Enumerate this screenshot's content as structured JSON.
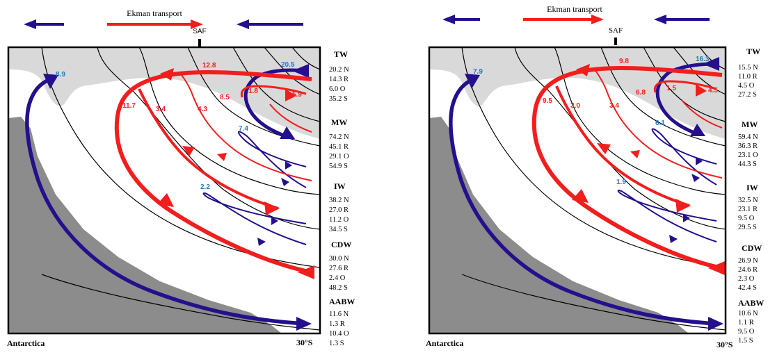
{
  "colors": {
    "ekman_red": "#f21e1e",
    "circulation_red": "#f21e1e",
    "circulation_blue": "#250f8c",
    "transport_blue_label": "#2e78b8",
    "continent_gray": "#8c8c8c",
    "surface_gray": "#d9d9d9",
    "isopycnal_black": "#000000"
  },
  "panels": [
    {
      "id": "left",
      "ekman_label": "Ekman transport",
      "front_label": "SAF",
      "bottom_left_label": "Antarctica",
      "bottom_right_label": "30°S",
      "flow_labels": {
        "blue": [
          "8.9",
          "20.5",
          "7.4",
          "2.2"
        ],
        "red": [
          "12.8",
          "11.7",
          "3.4",
          "4.3",
          "8.5",
          "1.8",
          "5.9"
        ]
      },
      "water_masses": [
        {
          "name": "TW",
          "values": [
            "20.2 N",
            "14.3 R",
            "6.0 O",
            "35.2 S"
          ]
        },
        {
          "name": "MW",
          "values": [
            "74.2 N",
            "45.1 R",
            "29.1 O",
            "54.9 S"
          ]
        },
        {
          "name": "IW",
          "values": [
            "38.2 N",
            "27.0 R",
            "11.2 O",
            "34.5 S"
          ]
        },
        {
          "name": "CDW",
          "values": [
            "30.0 N",
            "27.6 R",
            "2.4 O",
            "48.2 S"
          ]
        },
        {
          "name": "AABW",
          "values": [
            "11.6 N",
            "1.3 R",
            "10.4 O",
            "1.3 S"
          ]
        }
      ]
    },
    {
      "id": "right",
      "ekman_label": "Ekman transport",
      "front_label": "SAF",
      "bottom_left_label": "Antarctica",
      "bottom_right_label": "30°S",
      "flow_labels": {
        "blue": [
          "7.9",
          "16.3",
          "6.1",
          "1.9"
        ],
        "red": [
          "9.8",
          "9.5",
          "3.0",
          "3.4",
          "6.8",
          "1.5",
          "4.5"
        ]
      },
      "water_masses": [
        {
          "name": "TW",
          "values": [
            "15.5 N",
            "11.0 R",
            "4.5 O",
            "27.2 S"
          ]
        },
        {
          "name": "MW",
          "values": [
            "59.4 N",
            "36.3 R",
            "23.1 O",
            "44.3 S"
          ]
        },
        {
          "name": "IW",
          "values": [
            "32.5 N",
            "23.1 R",
            "9.5 O",
            "29.5 S"
          ]
        },
        {
          "name": "CDW",
          "values": [
            "26.9 N",
            "24.6 R",
            "2.3 O",
            "42.4 S"
          ]
        },
        {
          "name": "AABW",
          "values": [
            "10.6 N",
            "1.1 R",
            "9.5 O",
            "1.5 S"
          ]
        }
      ]
    }
  ]
}
